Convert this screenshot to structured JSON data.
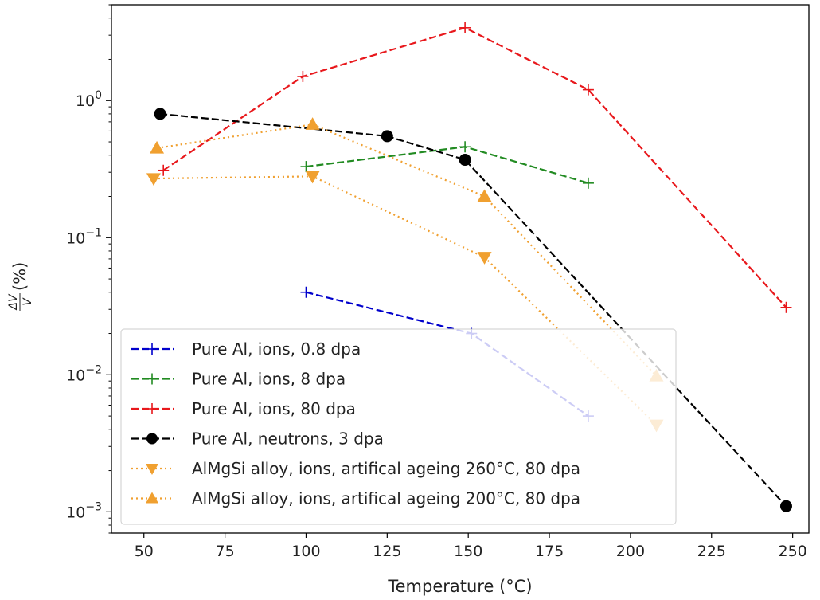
{
  "chart_data": {
    "type": "line",
    "title": "",
    "xlabel": "Temperature (°C)",
    "ylabel": "ΔV/V (%)",
    "xlim": [
      40,
      255
    ],
    "ylim": [
      0.0007,
      5
    ],
    "yscale": "log",
    "grid": false,
    "legend_position": "lower-left",
    "xticks": [
      {
        "value": 50,
        "label": "50"
      },
      {
        "value": 75,
        "label": "75"
      },
      {
        "value": 100,
        "label": "100"
      },
      {
        "value": 125,
        "label": "125"
      },
      {
        "value": 150,
        "label": "150"
      },
      {
        "value": 175,
        "label": "175"
      },
      {
        "value": 200,
        "label": "200"
      },
      {
        "value": 225,
        "label": "225"
      },
      {
        "value": 250,
        "label": "250"
      }
    ],
    "yticks": [
      {
        "value": 0.001,
        "base": "10",
        "exp": "−3"
      },
      {
        "value": 0.01,
        "base": "10",
        "exp": "−2"
      },
      {
        "value": 0.1,
        "base": "10",
        "exp": "−1"
      },
      {
        "value": 1,
        "base": "10",
        "exp": "0"
      }
    ],
    "series": [
      {
        "name": "Pure Al, ions, 0.8 dpa",
        "color": "#0000cc",
        "dash": "dashed",
        "marker": "plus",
        "x": [
          100,
          151,
          187
        ],
        "y": [
          0.04,
          0.02,
          0.005
        ]
      },
      {
        "name": "Pure Al, ions, 8 dpa",
        "color": "#228b22",
        "dash": "dashed",
        "marker": "plus",
        "x": [
          100,
          149,
          187
        ],
        "y": [
          0.33,
          0.46,
          0.25
        ]
      },
      {
        "name": "Pure Al, ions, 80 dpa",
        "color": "#e8181c",
        "dash": "dashed",
        "marker": "plus",
        "x": [
          56,
          99,
          149,
          187,
          248
        ],
        "y": [
          0.31,
          1.5,
          3.4,
          1.2,
          0.031
        ]
      },
      {
        "name": "Pure Al, neutrons, 3 dpa",
        "color": "#000000",
        "dash": "dashed",
        "marker": "circle",
        "x": [
          55,
          125,
          149,
          248
        ],
        "y": [
          0.8,
          0.55,
          0.37,
          0.0011
        ]
      },
      {
        "name": "AlMgSi alloy, ions, artifical ageing 260°C, 80 dpa",
        "color": "#f0a030",
        "dash": "dotted",
        "marker": "triangle-down",
        "x": [
          53,
          102,
          155,
          208
        ],
        "y": [
          0.27,
          0.28,
          0.072,
          0.0043
        ]
      },
      {
        "name": "AlMgSi alloy, ions, artifical ageing 200°C, 80 dpa",
        "color": "#f0a030",
        "dash": "dotted",
        "marker": "triangle-up",
        "x": [
          54,
          102,
          155,
          208
        ],
        "y": [
          0.45,
          0.67,
          0.2,
          0.0098
        ]
      }
    ]
  }
}
